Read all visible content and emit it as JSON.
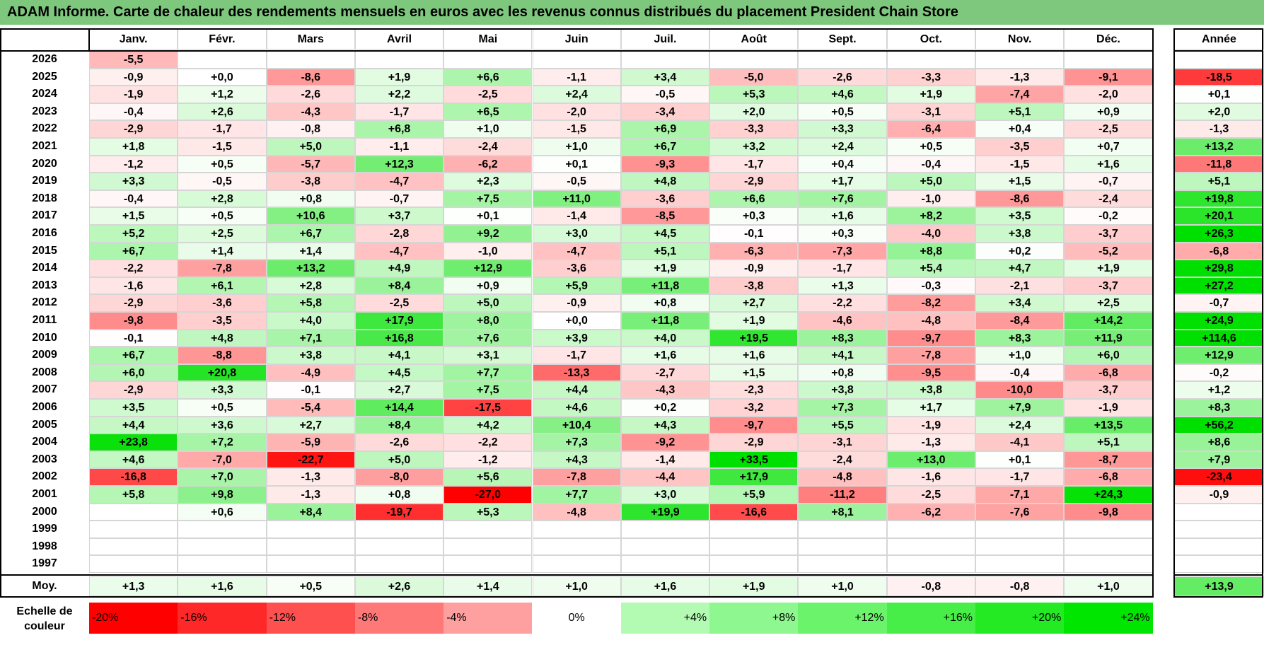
{
  "title": "ADAM Informe. Carte de chaleur des rendements mensuels en euros avec les revenus connus distribués du placement President Chain Store",
  "colors": {
    "title_bg": "#7ec87e",
    "negative_max": "#ff0000",
    "positive_max": "#00e000",
    "neutral": "#ffffff"
  },
  "chart_data": {
    "type": "heatmap",
    "title": "ADAM Informe. Carte de chaleur des rendements mensuels en euros avec les revenus connus distribués du placement President Chain Store",
    "columns": [
      "Janv.",
      "Févr.",
      "Mars",
      "Avril",
      "Mai",
      "Juin",
      "Juil.",
      "Août",
      "Sept.",
      "Oct.",
      "Nov.",
      "Déc."
    ],
    "annual_header": "Année",
    "rows": [
      {
        "year": "2026",
        "values": [
          "-5,5",
          "",
          "",
          "",
          "",
          "",
          "",
          "",
          "",
          "",
          "",
          ""
        ],
        "annual": ""
      },
      {
        "year": "2025",
        "values": [
          "-0,9",
          "+0,0",
          "-8,6",
          "+1,9",
          "+6,6",
          "-1,1",
          "+3,4",
          "-5,0",
          "-2,6",
          "-3,3",
          "-1,3",
          "-9,1"
        ],
        "annual": "-18,5"
      },
      {
        "year": "2024",
        "values": [
          "-1,9",
          "+1,2",
          "-2,6",
          "+2,2",
          "-2,5",
          "+2,4",
          "-0,5",
          "+5,3",
          "+4,6",
          "+1,9",
          "-7,4",
          "-2,0"
        ],
        "annual": "+0,1"
      },
      {
        "year": "2023",
        "values": [
          "-0,4",
          "+2,6",
          "-4,3",
          "-1,7",
          "+6,5",
          "-2,0",
          "-3,4",
          "+2,0",
          "+0,5",
          "-3,1",
          "+5,1",
          "+0,9"
        ],
        "annual": "+2,0"
      },
      {
        "year": "2022",
        "values": [
          "-2,9",
          "-1,7",
          "-0,8",
          "+6,8",
          "+1,0",
          "-1,5",
          "+6,9",
          "-3,3",
          "+3,3",
          "-6,4",
          "+0,4",
          "-2,5"
        ],
        "annual": "-1,3"
      },
      {
        "year": "2021",
        "values": [
          "+1,8",
          "-1,5",
          "+5,0",
          "-1,1",
          "-2,4",
          "+1,0",
          "+6,7",
          "+3,2",
          "+2,4",
          "+0,5",
          "-3,5",
          "+0,7"
        ],
        "annual": "+13,2"
      },
      {
        "year": "2020",
        "values": [
          "-1,2",
          "+0,5",
          "-5,7",
          "+12,3",
          "-6,2",
          "+0,1",
          "-9,3",
          "-1,7",
          "+0,4",
          "-0,4",
          "-1,5",
          "+1,6"
        ],
        "annual": "-11,8"
      },
      {
        "year": "2019",
        "values": [
          "+3,3",
          "-0,5",
          "-3,8",
          "-4,7",
          "+2,3",
          "-0,5",
          "+4,8",
          "-2,9",
          "+1,7",
          "+5,0",
          "+1,5",
          "-0,7"
        ],
        "annual": "+5,1"
      },
      {
        "year": "2018",
        "values": [
          "-0,4",
          "+2,8",
          "+0,8",
          "-0,7",
          "+7,5",
          "+11,0",
          "-3,6",
          "+6,6",
          "+7,6",
          "-1,0",
          "-8,6",
          "-2,4"
        ],
        "annual": "+19,8"
      },
      {
        "year": "2017",
        "values": [
          "+1,5",
          "+0,5",
          "+10,6",
          "+3,7",
          "+0,1",
          "-1,4",
          "-8,5",
          "+0,3",
          "+1,6",
          "+8,2",
          "+3,5",
          "-0,2"
        ],
        "annual": "+20,1"
      },
      {
        "year": "2016",
        "values": [
          "+5,2",
          "+2,5",
          "+6,7",
          "-2,8",
          "+9,2",
          "+3,0",
          "+4,5",
          "-0,1",
          "+0,3",
          "-4,0",
          "+3,8",
          "-3,7"
        ],
        "annual": "+26,3"
      },
      {
        "year": "2015",
        "values": [
          "+6,7",
          "+1,4",
          "+1,4",
          "-4,7",
          "-1,0",
          "-4,7",
          "+5,1",
          "-6,3",
          "-7,3",
          "+8,8",
          "+0,2",
          "-5,2"
        ],
        "annual": "-6,8"
      },
      {
        "year": "2014",
        "values": [
          "-2,2",
          "-7,8",
          "+13,2",
          "+4,9",
          "+12,9",
          "-3,6",
          "+1,9",
          "-0,9",
          "-1,7",
          "+5,4",
          "+4,7",
          "+1,9"
        ],
        "annual": "+29,8"
      },
      {
        "year": "2013",
        "values": [
          "-1,6",
          "+6,1",
          "+2,8",
          "+8,4",
          "+0,9",
          "+5,9",
          "+11,8",
          "-3,8",
          "+1,3",
          "-0,3",
          "-2,1",
          "-3,7"
        ],
        "annual": "+27,2"
      },
      {
        "year": "2012",
        "values": [
          "-2,9",
          "-3,6",
          "+5,8",
          "-2,5",
          "+5,0",
          "-0,9",
          "+0,8",
          "+2,7",
          "-2,2",
          "-8,2",
          "+3,4",
          "+2,5"
        ],
        "annual": "-0,7"
      },
      {
        "year": "2011",
        "values": [
          "-9,8",
          "-3,5",
          "+4,0",
          "+17,9",
          "+8,0",
          "+0,0",
          "+11,8",
          "+1,9",
          "-4,6",
          "-4,8",
          "-8,4",
          "+14,2"
        ],
        "annual": "+24,9"
      },
      {
        "year": "2010",
        "values": [
          "-0,1",
          "+4,8",
          "+7,1",
          "+16,8",
          "+7,6",
          "+3,9",
          "+4,0",
          "+19,5",
          "+8,3",
          "-9,7",
          "+8,3",
          "+11,9"
        ],
        "annual": "+114,6"
      },
      {
        "year": "2009",
        "values": [
          "+6,7",
          "-8,8",
          "+3,8",
          "+4,1",
          "+3,1",
          "-1,7",
          "+1,6",
          "+1,6",
          "+4,1",
          "-7,8",
          "+1,0",
          "+6,0"
        ],
        "annual": "+12,9"
      },
      {
        "year": "2008",
        "values": [
          "+6,0",
          "+20,8",
          "-4,9",
          "+4,5",
          "+7,7",
          "-13,3",
          "-2,7",
          "+1,5",
          "+0,8",
          "-9,5",
          "-0,4",
          "-6,8"
        ],
        "annual": "-0,2"
      },
      {
        "year": "2007",
        "values": [
          "-2,9",
          "+3,3",
          "-0,1",
          "+2,7",
          "+7,5",
          "+4,4",
          "-4,3",
          "-2,3",
          "+3,8",
          "+3,8",
          "-10,0",
          "-3,7"
        ],
        "annual": "+1,2"
      },
      {
        "year": "2006",
        "values": [
          "+3,5",
          "+0,5",
          "-5,4",
          "+14,4",
          "-17,5",
          "+4,6",
          "+0,2",
          "-3,2",
          "+7,3",
          "+1,7",
          "+7,9",
          "-1,9"
        ],
        "annual": "+8,3"
      },
      {
        "year": "2005",
        "values": [
          "+4,4",
          "+3,6",
          "+2,7",
          "+8,4",
          "+4,2",
          "+10,4",
          "+4,3",
          "-9,7",
          "+5,5",
          "-1,9",
          "+2,4",
          "+13,5"
        ],
        "annual": "+56,2"
      },
      {
        "year": "2004",
        "values": [
          "+23,8",
          "+7,2",
          "-5,9",
          "-2,6",
          "-2,2",
          "+7,3",
          "-9,2",
          "-2,9",
          "-3,1",
          "-1,3",
          "-4,1",
          "+5,1"
        ],
        "annual": "+8,6"
      },
      {
        "year": "2003",
        "values": [
          "+4,6",
          "-7,0",
          "-22,7",
          "+5,0",
          "-1,2",
          "+4,3",
          "-1,4",
          "+33,5",
          "-2,4",
          "+13,0",
          "+0,1",
          "-8,7"
        ],
        "annual": "+7,9"
      },
      {
        "year": "2002",
        "values": [
          "-16,8",
          "+7,0",
          "-1,3",
          "-8,0",
          "+5,6",
          "-7,8",
          "-4,4",
          "+17,9",
          "-4,8",
          "-1,6",
          "-1,7",
          "-6,8"
        ],
        "annual": "-23,4"
      },
      {
        "year": "2001",
        "values": [
          "+5,8",
          "+9,8",
          "-1,3",
          "+0,8",
          "-27,0",
          "+7,7",
          "+3,0",
          "+5,9",
          "-11,2",
          "-2,5",
          "-7,1",
          "+24,3"
        ],
        "annual": "-0,9"
      },
      {
        "year": "2000",
        "values": [
          "",
          "+0,6",
          "+8,4",
          "-19,7",
          "+5,3",
          "-4,8",
          "+19,9",
          "-16,6",
          "+8,1",
          "-6,2",
          "-7,6",
          "-9,8"
        ],
        "annual": ""
      },
      {
        "year": "1999",
        "values": [
          "",
          "",
          "",
          "",
          "",
          "",
          "",
          "",
          "",
          "",
          "",
          ""
        ],
        "annual": ""
      },
      {
        "year": "1998",
        "values": [
          "",
          "",
          "",
          "",
          "",
          "",
          "",
          "",
          "",
          "",
          "",
          ""
        ],
        "annual": ""
      },
      {
        "year": "1997",
        "values": [
          "",
          "",
          "",
          "",
          "",
          "",
          "",
          "",
          "",
          "",
          "",
          ""
        ],
        "annual": ""
      }
    ],
    "average": {
      "label": "Moy.",
      "values": [
        "+1,3",
        "+1,6",
        "+0,5",
        "+2,6",
        "+1,4",
        "+1,0",
        "+1,6",
        "+1,9",
        "+1,0",
        "-0,8",
        "-0,8",
        "+1,0"
      ],
      "annual": "+13,9"
    },
    "scale": {
      "label_line1": "Echelle de",
      "label_line2": "couleur",
      "stops": [
        "-20%",
        "-16%",
        "-12%",
        "-8%",
        "-4%",
        "0%",
        "+4%",
        "+8%",
        "+12%",
        "+16%",
        "+20%",
        "+24%"
      ],
      "stop_values": [
        -20,
        -16,
        -12,
        -8,
        -4,
        0,
        4,
        8,
        12,
        16,
        20,
        24
      ]
    }
  }
}
